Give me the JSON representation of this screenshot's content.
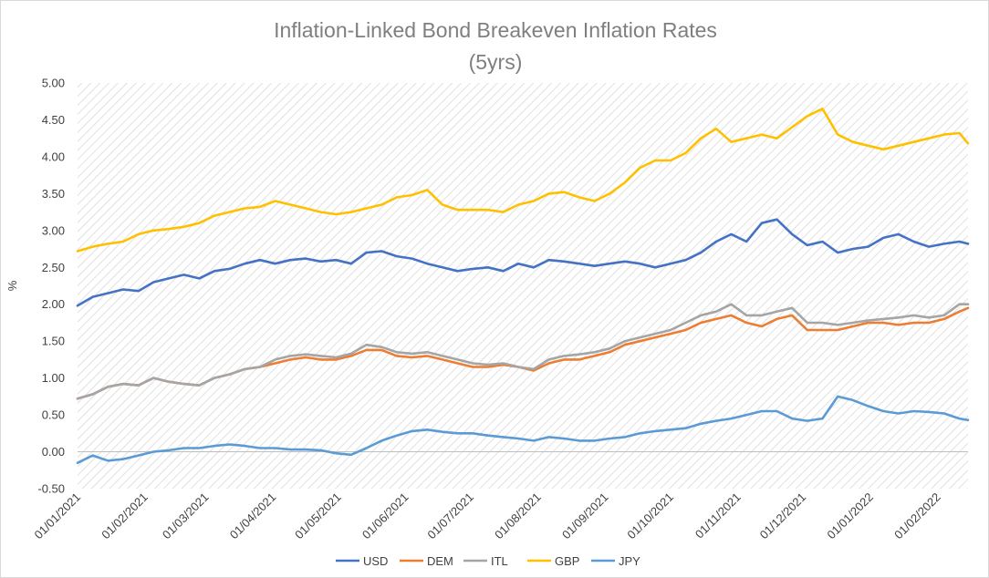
{
  "chart_data": {
    "type": "line",
    "title": "Inflation-Linked Bond Breakeven Inflation Rates",
    "subtitle": "(5yrs)",
    "ylabel": "%",
    "xlabel": "",
    "ylim": [
      -0.5,
      5.0
    ],
    "yticks": [
      "-0.50",
      "0.00",
      "0.50",
      "1.00",
      "1.50",
      "2.00",
      "2.50",
      "3.00",
      "3.50",
      "4.00",
      "4.50",
      "5.00"
    ],
    "x_tick_labels": [
      "01/01/2021",
      "01/02/2021",
      "01/03/2021",
      "01/04/2021",
      "01/05/2021",
      "01/06/2021",
      "01/07/2021",
      "01/08/2021",
      "01/09/2021",
      "01/10/2021",
      "01/11/2021",
      "01/12/2021",
      "01/01/2022",
      "01/02/2022"
    ],
    "x_range": [
      "2021-01-01",
      "2022-02-15"
    ],
    "grid": "hatched plot background",
    "legend_position": "bottom",
    "x": [
      "2021-01-01",
      "2021-01-08",
      "2021-01-15",
      "2021-01-22",
      "2021-01-29",
      "2021-02-05",
      "2021-02-12",
      "2021-02-19",
      "2021-02-26",
      "2021-03-05",
      "2021-03-12",
      "2021-03-19",
      "2021-03-26",
      "2021-04-02",
      "2021-04-09",
      "2021-04-16",
      "2021-04-23",
      "2021-04-30",
      "2021-05-07",
      "2021-05-14",
      "2021-05-21",
      "2021-05-28",
      "2021-06-04",
      "2021-06-11",
      "2021-06-18",
      "2021-06-25",
      "2021-07-02",
      "2021-07-09",
      "2021-07-16",
      "2021-07-23",
      "2021-07-30",
      "2021-08-06",
      "2021-08-13",
      "2021-08-20",
      "2021-08-27",
      "2021-09-03",
      "2021-09-10",
      "2021-09-17",
      "2021-09-24",
      "2021-10-01",
      "2021-10-08",
      "2021-10-15",
      "2021-10-22",
      "2021-10-29",
      "2021-11-05",
      "2021-11-12",
      "2021-11-19",
      "2021-11-26",
      "2021-12-03",
      "2021-12-10",
      "2021-12-17",
      "2021-12-24",
      "2021-12-31",
      "2022-01-07",
      "2022-01-14",
      "2022-01-21",
      "2022-01-28",
      "2022-02-04",
      "2022-02-11",
      "2022-02-15"
    ],
    "series": [
      {
        "name": "USD",
        "color": "#4472C4",
        "values": [
          1.98,
          2.1,
          2.15,
          2.2,
          2.18,
          2.3,
          2.35,
          2.4,
          2.35,
          2.45,
          2.48,
          2.55,
          2.6,
          2.55,
          2.6,
          2.62,
          2.58,
          2.6,
          2.55,
          2.7,
          2.72,
          2.65,
          2.62,
          2.55,
          2.5,
          2.45,
          2.48,
          2.5,
          2.45,
          2.55,
          2.5,
          2.6,
          2.58,
          2.55,
          2.52,
          2.55,
          2.58,
          2.55,
          2.5,
          2.55,
          2.6,
          2.7,
          2.85,
          2.95,
          2.85,
          3.1,
          3.15,
          2.95,
          2.8,
          2.85,
          2.7,
          2.75,
          2.78,
          2.9,
          2.95,
          2.85,
          2.78,
          2.82,
          2.85,
          2.82
        ]
      },
      {
        "name": "DEM",
        "color": "#ED7D31",
        "values": [
          0.72,
          0.78,
          0.88,
          0.92,
          0.9,
          1.0,
          0.95,
          0.92,
          0.9,
          1.0,
          1.05,
          1.12,
          1.15,
          1.2,
          1.25,
          1.28,
          1.25,
          1.25,
          1.3,
          1.38,
          1.38,
          1.3,
          1.28,
          1.3,
          1.25,
          1.2,
          1.15,
          1.15,
          1.18,
          1.15,
          1.1,
          1.2,
          1.25,
          1.25,
          1.3,
          1.35,
          1.45,
          1.5,
          1.55,
          1.6,
          1.65,
          1.75,
          1.8,
          1.85,
          1.75,
          1.7,
          1.8,
          1.85,
          1.65,
          1.65,
          1.65,
          1.7,
          1.75,
          1.75,
          1.72,
          1.75,
          1.75,
          1.8,
          1.9,
          1.95
        ]
      },
      {
        "name": "ITL",
        "color": "#A5A5A5",
        "values": [
          0.72,
          0.78,
          0.88,
          0.92,
          0.9,
          1.0,
          0.95,
          0.92,
          0.9,
          1.0,
          1.05,
          1.12,
          1.15,
          1.25,
          1.3,
          1.32,
          1.3,
          1.28,
          1.33,
          1.45,
          1.42,
          1.35,
          1.33,
          1.35,
          1.3,
          1.25,
          1.2,
          1.18,
          1.2,
          1.15,
          1.12,
          1.25,
          1.3,
          1.32,
          1.35,
          1.4,
          1.5,
          1.55,
          1.6,
          1.65,
          1.75,
          1.85,
          1.9,
          2.0,
          1.85,
          1.85,
          1.9,
          1.95,
          1.75,
          1.75,
          1.72,
          1.75,
          1.78,
          1.8,
          1.82,
          1.85,
          1.82,
          1.85,
          2.0,
          2.0
        ]
      },
      {
        "name": "GBP",
        "color": "#FFC000",
        "values": [
          2.72,
          2.78,
          2.82,
          2.85,
          2.95,
          3.0,
          3.02,
          3.05,
          3.1,
          3.2,
          3.25,
          3.3,
          3.32,
          3.4,
          3.35,
          3.3,
          3.25,
          3.22,
          3.25,
          3.3,
          3.35,
          3.45,
          3.48,
          3.55,
          3.35,
          3.28,
          3.28,
          3.28,
          3.25,
          3.35,
          3.4,
          3.5,
          3.52,
          3.45,
          3.4,
          3.5,
          3.65,
          3.85,
          3.95,
          3.95,
          4.05,
          4.25,
          4.38,
          4.2,
          4.25,
          4.3,
          4.25,
          4.4,
          4.55,
          4.65,
          4.3,
          4.2,
          4.15,
          4.1,
          4.15,
          4.2,
          4.25,
          4.3,
          4.32,
          4.18
        ]
      },
      {
        "name": "JPY",
        "color": "#5B9BD5",
        "values": [
          -0.15,
          -0.05,
          -0.12,
          -0.1,
          -0.05,
          0.0,
          0.02,
          0.05,
          0.05,
          0.08,
          0.1,
          0.08,
          0.05,
          0.05,
          0.03,
          0.03,
          0.02,
          -0.02,
          -0.04,
          0.05,
          0.15,
          0.22,
          0.28,
          0.3,
          0.27,
          0.25,
          0.25,
          0.22,
          0.2,
          0.18,
          0.15,
          0.2,
          0.18,
          0.15,
          0.15,
          0.18,
          0.2,
          0.25,
          0.28,
          0.3,
          0.32,
          0.38,
          0.42,
          0.45,
          0.5,
          0.55,
          0.55,
          0.45,
          0.42,
          0.45,
          0.75,
          0.7,
          0.62,
          0.55,
          0.52,
          0.55,
          0.54,
          0.52,
          0.45,
          0.43
        ]
      }
    ]
  }
}
